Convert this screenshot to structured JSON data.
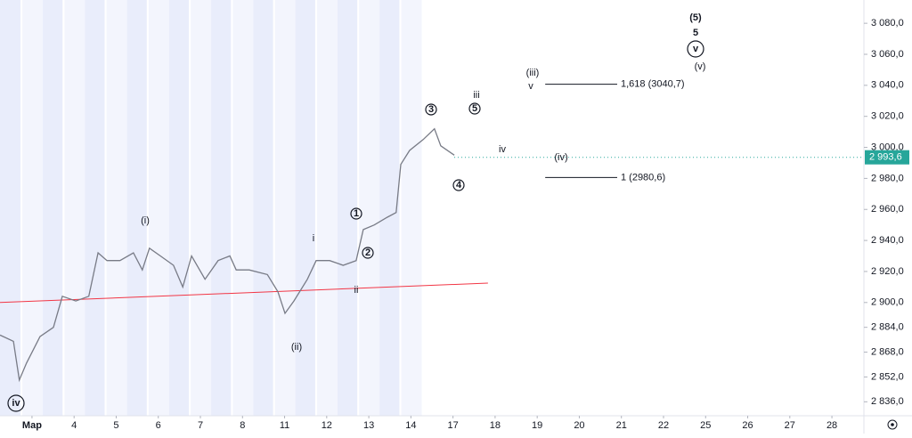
{
  "chart_data": {
    "type": "line",
    "x": [
      -0.76,
      -0.44,
      -0.3,
      -0.13,
      0.19,
      0.51,
      0.72,
      1.04,
      1.35,
      1.57,
      1.78,
      2.09,
      2.41,
      2.62,
      2.79,
      3.05,
      3.36,
      3.58,
      3.79,
      4.11,
      4.42,
      4.7,
      4.85,
      5.16,
      5.59,
      5.84,
      6.01,
      6.22,
      6.54,
      6.75,
      7.07,
      7.39,
      7.7,
      7.87,
      8.13,
      8.44,
      8.65,
      8.76,
      8.97,
      9.29,
      9.56,
      9.71,
      10.03
    ],
    "series": [
      {
        "color": "#787b86",
        "values": [
          2879,
          2875,
          2850,
          2861,
          2878,
          2884,
          2904,
          2901,
          2904,
          2932,
          2927,
          2927,
          2932,
          2921,
          2935,
          2930,
          2924,
          2910,
          2930,
          2915,
          2927,
          2930,
          2921,
          2921,
          2918,
          2907,
          2893,
          2901,
          2915,
          2927,
          2927,
          2924,
          2927,
          2947,
          2950,
          2955,
          2958,
          2989,
          2998,
          3005,
          3012,
          3001,
          2995
        ]
      }
    ],
    "xlim": [
      -0.76,
      19.76
    ],
    "xticks": [
      {
        "value": 0,
        "label": "Мар"
      },
      {
        "value": 1,
        "label": "4"
      },
      {
        "value": 2,
        "label": "5"
      },
      {
        "value": 3,
        "label": "6"
      },
      {
        "value": 4,
        "label": "7"
      },
      {
        "value": 5,
        "label": "8"
      },
      {
        "value": 6,
        "label": "11"
      },
      {
        "value": 7,
        "label": "12"
      },
      {
        "value": 8,
        "label": "13"
      },
      {
        "value": 9,
        "label": "14"
      },
      {
        "value": 10,
        "label": "17"
      },
      {
        "value": 11,
        "label": "18"
      },
      {
        "value": 12,
        "label": "19"
      },
      {
        "value": 13,
        "label": "20"
      },
      {
        "value": 14,
        "label": "21"
      },
      {
        "value": 15,
        "label": "22"
      },
      {
        "value": 16,
        "label": "25"
      },
      {
        "value": 17,
        "label": "26"
      },
      {
        "value": 18,
        "label": "27"
      },
      {
        "value": 19,
        "label": "28"
      }
    ],
    "ylim": [
      2827,
      3095
    ],
    "yticks": [
      {
        "value": 2836,
        "label": "2 836,0"
      },
      {
        "value": 2852,
        "label": "2 852,0"
      },
      {
        "value": 2868,
        "label": "2 868,0"
      },
      {
        "value": 2884,
        "label": "2 884,0"
      },
      {
        "value": 2900,
        "label": "2 900,0"
      },
      {
        "value": 2920,
        "label": "2 920,0"
      },
      {
        "value": 2940,
        "label": "2 940,0"
      },
      {
        "value": 2960,
        "label": "2 960,0"
      },
      {
        "value": 2980,
        "label": "2 980,0"
      },
      {
        "value": 3000,
        "label": "3 000,0"
      },
      {
        "value": 3020,
        "label": "3 020,0"
      },
      {
        "value": 3040,
        "label": "3 040,0"
      },
      {
        "value": 3060,
        "label": "3 060,0"
      },
      {
        "value": 3080,
        "label": "3 080,0"
      }
    ],
    "last_price": {
      "value": 2993.6,
      "label": "2 993,6",
      "color": "#26a69a"
    },
    "trendline": {
      "x": [
        -0.76,
        10.83
      ],
      "y": [
        2900,
        2912.5
      ],
      "color": "#f23645"
    },
    "levels": [
      {
        "value": 3040.7,
        "label": "1,618 (3040,7)",
        "x": [
          12.19,
          13.9
        ]
      },
      {
        "value": 2980.6,
        "label": "1 (2980,6)",
        "x": [
          12.19,
          13.9
        ]
      }
    ],
    "wave_labels": [
      "iv",
      "(i)",
      "i",
      "ii",
      "(ii)",
      "1",
      "2",
      "3",
      "4",
      "5",
      "iii",
      "iv",
      "(iii)",
      "v",
      "(iv)",
      "(5)",
      "5",
      "v",
      "(v)"
    ]
  }
}
